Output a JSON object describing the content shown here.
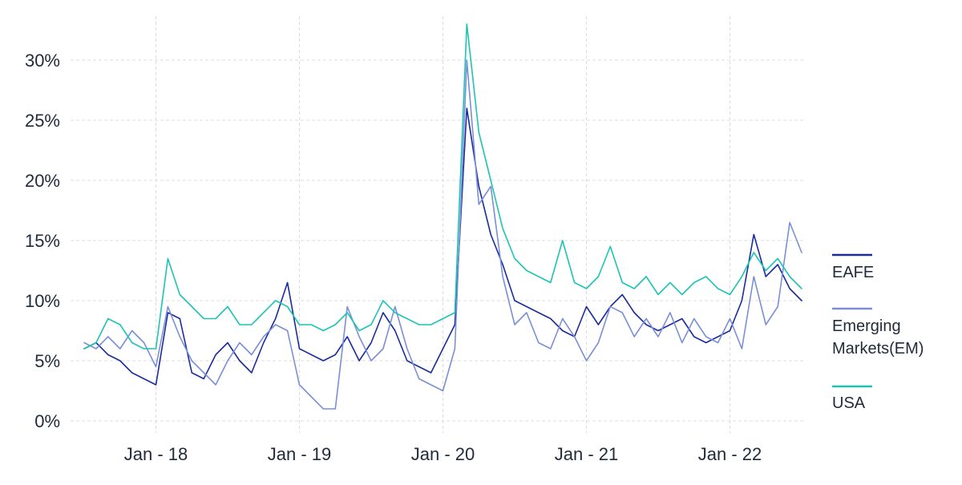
{
  "chart_data": {
    "type": "line",
    "title": "",
    "xlabel": "",
    "ylabel": "",
    "ylim": [
      0,
      33
    ],
    "y_ticks": [
      {
        "value": 0,
        "label": "0%"
      },
      {
        "value": 5,
        "label": "5%"
      },
      {
        "value": 10,
        "label": "10%"
      },
      {
        "value": 15,
        "label": "15%"
      },
      {
        "value": 20,
        "label": "20%"
      },
      {
        "value": 25,
        "label": "25%"
      },
      {
        "value": 30,
        "label": "30%"
      }
    ],
    "x_ticks": [
      {
        "date": "2018-01",
        "label": "Jan - 18"
      },
      {
        "date": "2019-01",
        "label": "Jan - 19"
      },
      {
        "date": "2020-01",
        "label": "Jan - 20"
      },
      {
        "date": "2021-01",
        "label": "Jan - 21"
      },
      {
        "date": "2022-01",
        "label": "Jan - 22"
      }
    ],
    "xlim": [
      "2017-07",
      "2022-07"
    ],
    "grid": true,
    "legend_position": "right",
    "series": [
      {
        "name": "EAFE",
        "color": "#1a2c9c",
        "x": [
          "2017-07",
          "2017-08",
          "2017-09",
          "2017-10",
          "2017-11",
          "2017-12",
          "2018-01",
          "2018-02",
          "2018-03",
          "2018-04",
          "2018-05",
          "2018-06",
          "2018-07",
          "2018-08",
          "2018-09",
          "2018-10",
          "2018-11",
          "2018-12",
          "2019-01",
          "2019-02",
          "2019-03",
          "2019-04",
          "2019-05",
          "2019-06",
          "2019-07",
          "2019-08",
          "2019-09",
          "2019-10",
          "2019-11",
          "2019-12",
          "2020-01",
          "2020-02",
          "2020-03",
          "2020-04",
          "2020-05",
          "2020-06",
          "2020-07",
          "2020-08",
          "2020-09",
          "2020-10",
          "2020-11",
          "2020-12",
          "2021-01",
          "2021-02",
          "2021-03",
          "2021-04",
          "2021-05",
          "2021-06",
          "2021-07",
          "2021-08",
          "2021-09",
          "2021-10",
          "2021-11",
          "2021-12",
          "2022-01",
          "2022-02",
          "2022-03",
          "2022-04",
          "2022-05",
          "2022-06",
          "2022-07"
        ],
        "y": [
          6.0,
          6.5,
          5.5,
          5.0,
          4.0,
          3.5,
          3.0,
          9.0,
          8.5,
          4.0,
          3.5,
          5.5,
          6.5,
          5.0,
          4.0,
          6.5,
          8.5,
          11.5,
          6.0,
          5.5,
          5.0,
          5.5,
          7.0,
          5.0,
          6.5,
          9.0,
          7.5,
          5.0,
          4.5,
          4.0,
          6.0,
          8.0,
          26.0,
          19.5,
          15.5,
          13.0,
          10.0,
          9.5,
          9.0,
          8.5,
          7.5,
          7.0,
          9.5,
          8.0,
          9.5,
          10.5,
          9.0,
          8.0,
          7.5,
          8.0,
          8.5,
          7.0,
          6.5,
          7.0,
          7.5,
          10.0,
          15.5,
          12.0,
          13.0,
          11.0,
          10.0
        ]
      },
      {
        "name": "Emerging Markets(EM)",
        "color": "#7a8fd6",
        "x": [
          "2017-07",
          "2017-08",
          "2017-09",
          "2017-10",
          "2017-11",
          "2017-12",
          "2018-01",
          "2018-02",
          "2018-03",
          "2018-04",
          "2018-05",
          "2018-06",
          "2018-07",
          "2018-08",
          "2018-09",
          "2018-10",
          "2018-11",
          "2018-12",
          "2019-01",
          "2019-02",
          "2019-03",
          "2019-04",
          "2019-05",
          "2019-06",
          "2019-07",
          "2019-08",
          "2019-09",
          "2019-10",
          "2019-11",
          "2019-12",
          "2020-01",
          "2020-02",
          "2020-03",
          "2020-04",
          "2020-05",
          "2020-06",
          "2020-07",
          "2020-08",
          "2020-09",
          "2020-10",
          "2020-11",
          "2020-12",
          "2021-01",
          "2021-02",
          "2021-03",
          "2021-04",
          "2021-05",
          "2021-06",
          "2021-07",
          "2021-08",
          "2021-09",
          "2021-10",
          "2021-11",
          "2021-12",
          "2022-01",
          "2022-02",
          "2022-03",
          "2022-04",
          "2022-05",
          "2022-06",
          "2022-07"
        ],
        "y": [
          6.5,
          6.0,
          7.0,
          6.0,
          7.5,
          6.5,
          4.5,
          9.5,
          7.0,
          5.0,
          4.0,
          3.0,
          5.0,
          6.5,
          5.5,
          7.0,
          8.0,
          7.5,
          3.0,
          2.0,
          1.0,
          1.0,
          9.5,
          7.0,
          5.0,
          6.0,
          9.5,
          6.0,
          3.5,
          3.0,
          2.5,
          6.0,
          30.0,
          18.0,
          19.5,
          12.0,
          8.0,
          9.0,
          6.5,
          6.0,
          8.5,
          7.0,
          5.0,
          6.5,
          9.5,
          9.0,
          7.0,
          8.5,
          7.0,
          9.0,
          6.5,
          8.5,
          7.0,
          6.5,
          8.5,
          6.0,
          12.0,
          8.0,
          9.5,
          16.5,
          14.0
        ]
      },
      {
        "name": "USA",
        "color": "#1dc4b4",
        "x": [
          "2017-07",
          "2017-08",
          "2017-09",
          "2017-10",
          "2017-11",
          "2017-12",
          "2018-01",
          "2018-02",
          "2018-03",
          "2018-04",
          "2018-05",
          "2018-06",
          "2018-07",
          "2018-08",
          "2018-09",
          "2018-10",
          "2018-11",
          "2018-12",
          "2019-01",
          "2019-02",
          "2019-03",
          "2019-04",
          "2019-05",
          "2019-06",
          "2019-07",
          "2019-08",
          "2019-09",
          "2019-10",
          "2019-11",
          "2019-12",
          "2020-01",
          "2020-02",
          "2020-03",
          "2020-04",
          "2020-05",
          "2020-06",
          "2020-07",
          "2020-08",
          "2020-09",
          "2020-10",
          "2020-11",
          "2020-12",
          "2021-01",
          "2021-02",
          "2021-03",
          "2021-04",
          "2021-05",
          "2021-06",
          "2021-07",
          "2021-08",
          "2021-09",
          "2021-10",
          "2021-11",
          "2021-12",
          "2022-01",
          "2022-02",
          "2022-03",
          "2022-04",
          "2022-05",
          "2022-06",
          "2022-07"
        ],
        "y": [
          6.0,
          6.5,
          8.5,
          8.0,
          6.5,
          6.0,
          6.0,
          13.5,
          10.5,
          9.5,
          8.5,
          8.5,
          9.5,
          8.0,
          8.0,
          9.0,
          10.0,
          9.5,
          8.0,
          8.0,
          7.5,
          8.0,
          9.0,
          7.5,
          8.0,
          10.0,
          9.0,
          8.5,
          8.0,
          8.0,
          8.5,
          9.0,
          33.0,
          24.0,
          20.0,
          16.0,
          13.5,
          12.5,
          12.0,
          11.5,
          15.0,
          11.5,
          11.0,
          12.0,
          14.5,
          11.5,
          11.0,
          12.0,
          10.5,
          11.5,
          10.5,
          11.5,
          12.0,
          11.0,
          10.5,
          12.0,
          14.0,
          12.5,
          13.5,
          12.0,
          11.0
        ]
      }
    ]
  }
}
